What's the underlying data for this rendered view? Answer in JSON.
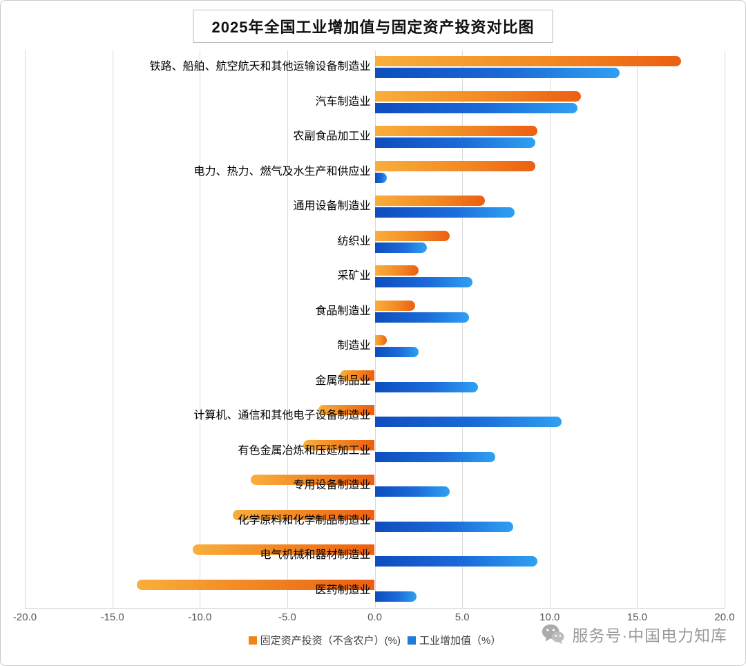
{
  "title": "2025年全国工业增加值与固定资产投资对比图",
  "watermark": {
    "text": "服务号·中国电力知库",
    "icon": "wechat-icon",
    "color": "#9b9b9b"
  },
  "legend": [
    {
      "label": "固定资产投资（不含农户）(%)",
      "color": "#F08419"
    },
    {
      "label": "工业增加值（%）",
      "color": "#1E7BD6"
    }
  ],
  "colors": {
    "orange_gradient_start": "#F9AE3C",
    "orange_gradient_end": "#EC5F12",
    "blue_gradient_start": "#0E4DBE",
    "blue_gradient_end": "#2FA0F2",
    "gridline": "#d9d9d9"
  },
  "chart_data": {
    "type": "bar",
    "orientation": "horizontal",
    "title": "2025年全国工业增加值与固定资产投资对比图",
    "xlabel": "",
    "ylabel": "",
    "xlim": [
      -20.0,
      20.0
    ],
    "grid": true,
    "legend_position": "bottom",
    "x_ticks": [
      -20.0,
      -15.0,
      -10.0,
      -5.0,
      0.0,
      5.0,
      10.0,
      15.0,
      20.0
    ],
    "x_tick_labels": [
      "-20.0",
      "-15.0",
      "-10.0",
      "-5.0",
      "0.0",
      "5.0",
      "10.0",
      "15.0",
      "20.0"
    ],
    "categories": [
      "铁路、船舶、航空航天和其他运输设备制造业",
      "汽车制造业",
      "农副食品加工业",
      "电力、热力、燃气及水生产和供应业",
      "通用设备制造业",
      "纺织业",
      "采矿业",
      "食品制造业",
      "制造业",
      "金属制品业",
      "计算机、通信和其他电子设备制造业",
      "有色金属冶炼和压延加工业",
      "专用设备制造业",
      "化学原料和化学制品制造业",
      "电气机械和器材制造业",
      "医药制造业"
    ],
    "series": [
      {
        "name": "固定资产投资（不含农户）(%)",
        "color": "orange",
        "values": [
          17.5,
          11.8,
          9.3,
          9.2,
          6.3,
          4.3,
          2.5,
          2.3,
          0.7,
          -2.0,
          -3.2,
          -4.1,
          -7.1,
          -8.1,
          -10.4,
          -13.6
        ]
      },
      {
        "name": "工业增加值（%）",
        "color": "blue",
        "values": [
          14.0,
          11.6,
          9.2,
          0.7,
          8.0,
          3.0,
          5.6,
          5.4,
          2.5,
          5.9,
          10.7,
          6.9,
          4.3,
          7.9,
          9.3,
          2.4
        ]
      }
    ]
  }
}
